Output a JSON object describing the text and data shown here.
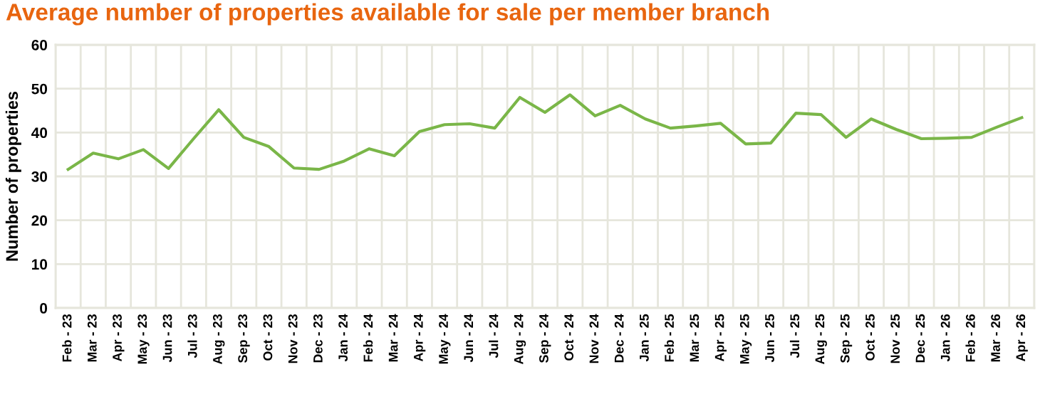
{
  "chart_data": {
    "type": "line",
    "title": "Average number of properties available for sale per member branch",
    "ylabel": "Number of properties",
    "categories": [
      "Feb - 23",
      "Mar - 23",
      "Apr - 23",
      "May - 23",
      "Jun - 23",
      "Jul - 23",
      "Aug - 23",
      "Sep - 23",
      "Oct - 23",
      "Nov - 23",
      "Dec - 23",
      "Jan - 24",
      "Feb - 24",
      "Mar - 24",
      "Apr - 24",
      "May - 24",
      "Jun - 24",
      "Jul - 24",
      "Aug - 24",
      "Sep - 24",
      "Oct - 24",
      "Nov - 24",
      "Dec - 24",
      "Jan - 25",
      "Feb - 25",
      "Mar - 25",
      "Apr - 25",
      "May - 25",
      "Jun - 25",
      "Jul - 25",
      "Aug - 25",
      "Sep - 25",
      "Oct - 25",
      "Nov - 25",
      "Dec - 25",
      "Jan - 26",
      "Feb - 26",
      "Mar - 26",
      "Apr - 26"
    ],
    "series": [
      {
        "color": "#7ab648",
        "values": [
          31.6,
          35.3,
          34.0,
          36.1,
          31.8,
          38.6,
          45.2,
          38.9,
          36.8,
          31.9,
          31.6,
          33.5,
          36.3,
          34.7,
          40.2,
          41.8,
          42.0,
          41.0,
          48.0,
          44.6,
          48.6,
          43.8,
          46.2,
          43.1,
          41.0,
          41.5,
          42.1,
          37.4,
          37.6,
          44.4,
          44.1,
          38.9,
          43.1,
          40.7,
          38.6,
          38.7,
          38.9,
          41.2,
          43.4
        ]
      }
    ],
    "ylim": [
      0,
      60
    ],
    "yticks": [
      0,
      10,
      20,
      30,
      40,
      50,
      60
    ],
    "grid": true,
    "marker": "none",
    "line_style": "solid",
    "legend": false
  }
}
